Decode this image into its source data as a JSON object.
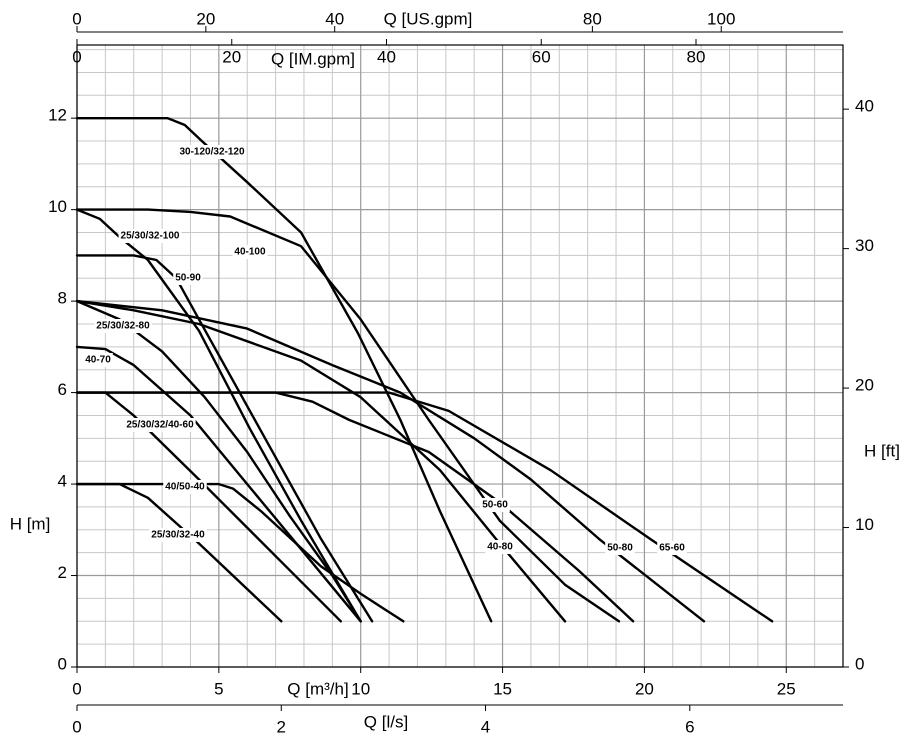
{
  "chart_data": {
    "type": "line",
    "color": "#000000",
    "grid": true,
    "xlabel": "Q [m³/h]",
    "xlim": [
      0,
      27
    ],
    "xticks": [
      0,
      5,
      10,
      15,
      20,
      25
    ],
    "ylabel": "H [m]",
    "ylim": [
      0,
      13.6
    ],
    "yticks": [
      0,
      2,
      4,
      6,
      8,
      10,
      12
    ],
    "y2label": "H [ft]",
    "y2lim": [
      0,
      44.6
    ],
    "y2ticks": [
      0,
      10,
      20,
      30,
      40
    ],
    "secondary_x_axes": [
      {
        "label": "Q [US.gpm]",
        "position": "top",
        "lim": [
          0,
          118.9
        ],
        "ticks": [
          0,
          20,
          40,
          80,
          100
        ]
      },
      {
        "label": "Q [IM.gpm]",
        "position": "top",
        "lim": [
          0,
          99
        ],
        "ticks": [
          0,
          20,
          40,
          60,
          80
        ]
      },
      {
        "label": "Q [l/s]",
        "position": "bottom",
        "lim": [
          0,
          7.5
        ],
        "ticks": [
          0,
          2,
          4,
          6
        ]
      }
    ],
    "series": [
      {
        "name": "30-120/32-120",
        "x": [
          0,
          3.2,
          3.8,
          4.4,
          6.0,
          7.9,
          9.9,
          11.4,
          12.8,
          14.6
        ],
        "values": [
          12,
          12,
          11.85,
          11.5,
          10.6,
          9.5,
          7.3,
          5.4,
          3.4,
          1.0
        ]
      },
      {
        "name": "40-100",
        "x": [
          0,
          2.5,
          4,
          5.4,
          7.9,
          10,
          12.4,
          14.9,
          17.2,
          19.1
        ],
        "values": [
          10,
          10,
          9.95,
          9.85,
          9.2,
          7.6,
          5.4,
          3.2,
          1.8,
          1.0
        ]
      },
      {
        "name": "25/30/32-100",
        "x": [
          0,
          0.8,
          1.5,
          2.5,
          4.3,
          6.1,
          7.9,
          10
        ],
        "values": [
          10,
          9.8,
          9.4,
          8.9,
          7.35,
          5.2,
          3.2,
          1.0
        ]
      },
      {
        "name": "50-90",
        "x": [
          0,
          2.0,
          2.8,
          3.5,
          4.3,
          6.45,
          8.6,
          10.4
        ],
        "values": [
          9,
          9,
          8.9,
          8.5,
          7.6,
          5.2,
          2.8,
          1.0
        ]
      },
      {
        "name": "25/30/32-80",
        "x": [
          0,
          1.5,
          3,
          4.5,
          6,
          7.5,
          9,
          10
        ],
        "values": [
          8,
          7.6,
          6.9,
          5.9,
          4.7,
          3.3,
          2.0,
          1.0
        ]
      },
      {
        "name": "40-80",
        "x": [
          0,
          2,
          4.3,
          7.9,
          10,
          11.4,
          12.8,
          14.9,
          17.2
        ],
        "values": [
          8,
          7.8,
          7.5,
          6.7,
          5.9,
          5.1,
          4.3,
          2.7,
          1.0
        ]
      },
      {
        "name": "50-80",
        "x": [
          0,
          3,
          6,
          9,
          11.4,
          14,
          16,
          18.4,
          22.1
        ],
        "values": [
          8,
          7.8,
          7.4,
          6.6,
          6.0,
          5.0,
          4.1,
          2.8,
          1.0
        ]
      },
      {
        "name": "65-60",
        "x": [
          0,
          11,
          13.1,
          16.7,
          20.2,
          24.5
        ],
        "values": [
          6,
          6,
          5.6,
          4.3,
          2.8,
          1.0
        ]
      },
      {
        "name": "50-60",
        "x": [
          0,
          7,
          8.3,
          9.6,
          12.4,
          14.9,
          17.7,
          19.6
        ],
        "values": [
          6,
          6,
          5.8,
          5.4,
          4.7,
          3.6,
          2.1,
          1.0
        ]
      },
      {
        "name": "40-70",
        "x": [
          0,
          1,
          2,
          4,
          6,
          8,
          10
        ],
        "values": [
          7,
          6.95,
          6.6,
          5.5,
          4.0,
          2.5,
          1.0
        ]
      },
      {
        "name": "25/30/32/40-60",
        "x": [
          0,
          1,
          2,
          4.3,
          7.2,
          9.3
        ],
        "values": [
          6,
          6,
          5.5,
          4.1,
          2.3,
          1.0
        ]
      },
      {
        "name": "40/50-40",
        "x": [
          0,
          5,
          5.5,
          6.5,
          8.6,
          10,
          11.5
        ],
        "values": [
          4,
          4,
          3.9,
          3.4,
          2.2,
          1.6,
          1.0
        ]
      },
      {
        "name": "25/30/32-40",
        "x": [
          0,
          1.5,
          2.5,
          4.3,
          7.2
        ],
        "values": [
          4,
          4,
          3.7,
          2.7,
          1.0
        ]
      }
    ]
  }
}
